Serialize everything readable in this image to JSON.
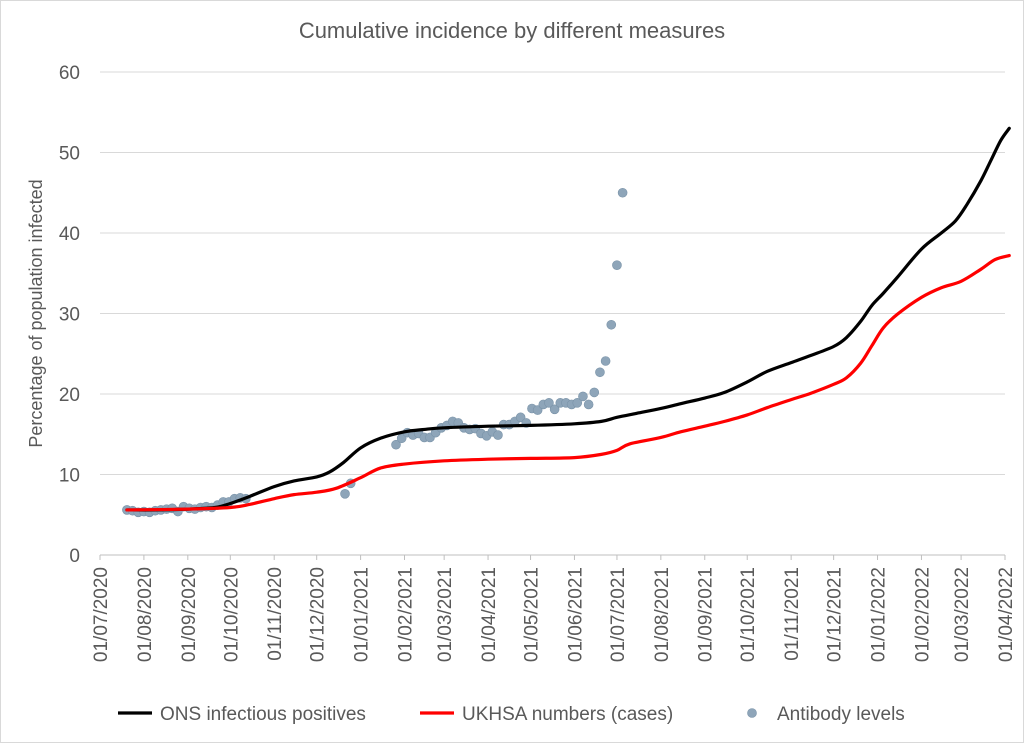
{
  "chart_data": {
    "type": "line",
    "title": "Cumulative incidence by different measures",
    "ylabel": "Percentage of population infected",
    "xlabel": "",
    "ylim": [
      0,
      60
    ],
    "yticks": [
      0,
      10,
      20,
      30,
      40,
      50,
      60
    ],
    "xlim": [
      "2020-07-01",
      "2022-04-01"
    ],
    "xticks": [
      {
        "date": "2020-07-01",
        "label": "01/07/2020"
      },
      {
        "date": "2020-08-01",
        "label": "01/08/2020"
      },
      {
        "date": "2020-09-01",
        "label": "01/09/2020"
      },
      {
        "date": "2020-10-01",
        "label": "01/10/2020"
      },
      {
        "date": "2020-11-01",
        "label": "01/11/2020"
      },
      {
        "date": "2020-12-01",
        "label": "01/12/2020"
      },
      {
        "date": "2021-01-01",
        "label": "01/01/2021"
      },
      {
        "date": "2021-02-01",
        "label": "01/02/2021"
      },
      {
        "date": "2021-03-01",
        "label": "01/03/2021"
      },
      {
        "date": "2021-04-01",
        "label": "01/04/2021"
      },
      {
        "date": "2021-05-01",
        "label": "01/05/2021"
      },
      {
        "date": "2021-06-01",
        "label": "01/06/2021"
      },
      {
        "date": "2021-07-01",
        "label": "01/07/2021"
      },
      {
        "date": "2021-08-01",
        "label": "01/08/2021"
      },
      {
        "date": "2021-09-01",
        "label": "01/09/2021"
      },
      {
        "date": "2021-10-01",
        "label": "01/10/2021"
      },
      {
        "date": "2021-11-01",
        "label": "01/11/2021"
      },
      {
        "date": "2021-12-01",
        "label": "01/12/2021"
      },
      {
        "date": "2022-01-01",
        "label": "01/01/2022"
      },
      {
        "date": "2022-02-01",
        "label": "01/02/2022"
      },
      {
        "date": "2022-03-01",
        "label": "01/03/2022"
      },
      {
        "date": "2022-04-01",
        "label": "01/04/2022"
      }
    ],
    "grid": "horizontal",
    "legend_position": "bottom",
    "series": [
      {
        "name": "ONS infectious positives",
        "type": "line",
        "color": "#000000",
        "points": [
          [
            "2020-07-20",
            5.6
          ],
          [
            "2020-08-10",
            5.6
          ],
          [
            "2020-09-01",
            5.7
          ],
          [
            "2020-09-20",
            5.9
          ],
          [
            "2020-10-01",
            6.4
          ],
          [
            "2020-10-15",
            7.3
          ],
          [
            "2020-11-01",
            8.5
          ],
          [
            "2020-11-15",
            9.2
          ],
          [
            "2020-12-01",
            9.7
          ],
          [
            "2020-12-10",
            10.3
          ],
          [
            "2020-12-20",
            11.5
          ],
          [
            "2021-01-01",
            13.3
          ],
          [
            "2021-01-15",
            14.5
          ],
          [
            "2021-02-01",
            15.3
          ],
          [
            "2021-02-15",
            15.6
          ],
          [
            "2021-03-01",
            15.8
          ],
          [
            "2021-04-01",
            16.0
          ],
          [
            "2021-05-01",
            16.1
          ],
          [
            "2021-06-01",
            16.3
          ],
          [
            "2021-06-20",
            16.6
          ],
          [
            "2021-07-01",
            17.1
          ],
          [
            "2021-07-15",
            17.6
          ],
          [
            "2021-08-01",
            18.2
          ],
          [
            "2021-08-15",
            18.8
          ],
          [
            "2021-09-01",
            19.5
          ],
          [
            "2021-09-15",
            20.2
          ],
          [
            "2021-10-01",
            21.5
          ],
          [
            "2021-10-15",
            22.8
          ],
          [
            "2021-11-01",
            23.9
          ],
          [
            "2021-11-15",
            24.8
          ],
          [
            "2021-12-01",
            25.9
          ],
          [
            "2021-12-10",
            27.0
          ],
          [
            "2021-12-20",
            29.0
          ],
          [
            "2021-12-28",
            31.0
          ],
          [
            "2022-01-05",
            32.5
          ],
          [
            "2022-01-15",
            34.5
          ],
          [
            "2022-02-01",
            38.0
          ],
          [
            "2022-02-15",
            40.0
          ],
          [
            "2022-02-25",
            41.5
          ],
          [
            "2022-03-05",
            43.5
          ],
          [
            "2022-03-15",
            46.5
          ],
          [
            "2022-03-22",
            49.0
          ],
          [
            "2022-03-29",
            51.5
          ],
          [
            "2022-04-04",
            53.0
          ]
        ]
      },
      {
        "name": "UKHSA numbers (cases)",
        "type": "line",
        "color": "#ff0000",
        "points": [
          [
            "2020-07-20",
            5.6
          ],
          [
            "2020-09-01",
            5.7
          ],
          [
            "2020-10-01",
            5.9
          ],
          [
            "2020-10-15",
            6.3
          ],
          [
            "2020-11-01",
            7.0
          ],
          [
            "2020-11-15",
            7.5
          ],
          [
            "2020-12-01",
            7.8
          ],
          [
            "2020-12-15",
            8.3
          ],
          [
            "2021-01-01",
            9.6
          ],
          [
            "2021-01-15",
            10.8
          ],
          [
            "2021-02-01",
            11.3
          ],
          [
            "2021-03-01",
            11.7
          ],
          [
            "2021-04-01",
            11.9
          ],
          [
            "2021-05-01",
            12.0
          ],
          [
            "2021-06-01",
            12.1
          ],
          [
            "2021-06-20",
            12.5
          ],
          [
            "2021-07-01",
            13.0
          ],
          [
            "2021-07-10",
            13.8
          ],
          [
            "2021-08-01",
            14.6
          ],
          [
            "2021-08-15",
            15.3
          ],
          [
            "2021-09-01",
            16.0
          ],
          [
            "2021-09-15",
            16.6
          ],
          [
            "2021-10-01",
            17.4
          ],
          [
            "2021-10-15",
            18.3
          ],
          [
            "2021-11-01",
            19.3
          ],
          [
            "2021-11-15",
            20.1
          ],
          [
            "2021-12-01",
            21.2
          ],
          [
            "2021-12-10",
            22.0
          ],
          [
            "2021-12-20",
            23.8
          ],
          [
            "2021-12-28",
            26.0
          ],
          [
            "2022-01-05",
            28.2
          ],
          [
            "2022-01-15",
            29.9
          ],
          [
            "2022-02-01",
            32.0
          ],
          [
            "2022-02-15",
            33.2
          ],
          [
            "2022-03-01",
            34.0
          ],
          [
            "2022-03-15",
            35.5
          ],
          [
            "2022-03-25",
            36.7
          ],
          [
            "2022-04-04",
            37.2
          ]
        ]
      },
      {
        "name": "Antibody levels",
        "type": "scatter",
        "color": "#8ea5b9",
        "points": [
          [
            "2020-07-20",
            5.6
          ],
          [
            "2020-07-24",
            5.5
          ],
          [
            "2020-07-28",
            5.3
          ],
          [
            "2020-08-01",
            5.4
          ],
          [
            "2020-08-05",
            5.3
          ],
          [
            "2020-08-09",
            5.5
          ],
          [
            "2020-08-13",
            5.6
          ],
          [
            "2020-08-17",
            5.7
          ],
          [
            "2020-08-21",
            5.8
          ],
          [
            "2020-08-25",
            5.4
          ],
          [
            "2020-08-29",
            6.0
          ],
          [
            "2020-09-02",
            5.8
          ],
          [
            "2020-09-06",
            5.7
          ],
          [
            "2020-09-10",
            5.9
          ],
          [
            "2020-09-14",
            6.0
          ],
          [
            "2020-09-18",
            5.9
          ],
          [
            "2020-09-22",
            6.2
          ],
          [
            "2020-09-26",
            6.6
          ],
          [
            "2020-09-30",
            6.6
          ],
          [
            "2020-10-04",
            7.0
          ],
          [
            "2020-10-08",
            7.1
          ],
          [
            "2020-10-12",
            7.0
          ],
          [
            "2020-12-21",
            7.6
          ],
          [
            "2020-12-25",
            8.9
          ],
          [
            "2021-01-26",
            13.7
          ],
          [
            "2021-01-30",
            14.5
          ],
          [
            "2021-02-03",
            15.2
          ],
          [
            "2021-02-07",
            14.9
          ],
          [
            "2021-02-11",
            15.1
          ],
          [
            "2021-02-15",
            14.6
          ],
          [
            "2021-02-19",
            14.6
          ],
          [
            "2021-02-23",
            15.2
          ],
          [
            "2021-02-27",
            15.8
          ],
          [
            "2021-03-03",
            16.1
          ],
          [
            "2021-03-07",
            16.6
          ],
          [
            "2021-03-11",
            16.4
          ],
          [
            "2021-03-15",
            15.8
          ],
          [
            "2021-03-19",
            15.6
          ],
          [
            "2021-03-23",
            15.7
          ],
          [
            "2021-03-27",
            15.1
          ],
          [
            "2021-03-31",
            14.8
          ],
          [
            "2021-04-04",
            15.3
          ],
          [
            "2021-04-08",
            14.9
          ],
          [
            "2021-04-12",
            16.2
          ],
          [
            "2021-04-16",
            16.2
          ],
          [
            "2021-04-20",
            16.6
          ],
          [
            "2021-04-24",
            17.1
          ],
          [
            "2021-04-28",
            16.4
          ],
          [
            "2021-05-02",
            18.2
          ],
          [
            "2021-05-06",
            18.0
          ],
          [
            "2021-05-10",
            18.7
          ],
          [
            "2021-05-14",
            18.9
          ],
          [
            "2021-05-18",
            18.1
          ],
          [
            "2021-05-22",
            18.9
          ],
          [
            "2021-05-26",
            18.9
          ],
          [
            "2021-05-30",
            18.7
          ],
          [
            "2021-06-03",
            18.9
          ],
          [
            "2021-06-07",
            19.7
          ],
          [
            "2021-06-11",
            18.7
          ],
          [
            "2021-06-15",
            20.2
          ],
          [
            "2021-06-19",
            22.7
          ],
          [
            "2021-06-23",
            24.1
          ],
          [
            "2021-06-27",
            28.6
          ],
          [
            "2021-07-01",
            36.0
          ],
          [
            "2021-07-05",
            45.0
          ]
        ]
      }
    ]
  }
}
